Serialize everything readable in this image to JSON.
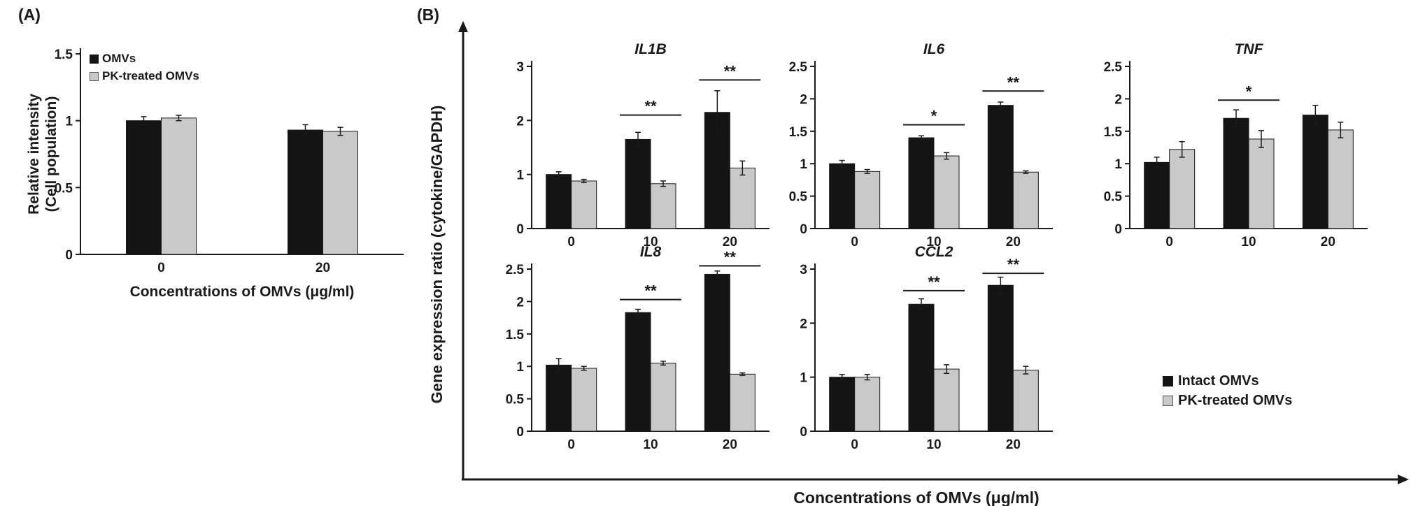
{
  "panels": {
    "a": {
      "label": "(A)",
      "legend": [
        {
          "label": "OMVs",
          "color": "black"
        },
        {
          "label": "PK-treated OMVs",
          "color": "gray"
        }
      ]
    },
    "b": {
      "label": "(B)",
      "ylabel": "Gene expression ratio (cytokine/GAPDH)",
      "xlabel": "Concentrations of OMVs (μg/ml)",
      "legend": [
        {
          "label": "Intact OMVs",
          "color": "black"
        },
        {
          "label": "PK-treated OMVs",
          "color": "gray"
        }
      ]
    }
  },
  "colors": {
    "series_black": "#141414",
    "series_gray": "#c9c9c9",
    "axis": "#1a1a1a",
    "background": "#ffffff"
  },
  "chart_data": [
    {
      "id": "A",
      "type": "bar",
      "title": "",
      "categories": [
        "0",
        "20"
      ],
      "series": [
        {
          "name": "OMVs",
          "color": "black",
          "values": [
            1.0,
            0.93
          ],
          "errors": [
            0.03,
            0.04
          ]
        },
        {
          "name": "PK-treated OMVs",
          "color": "gray",
          "values": [
            1.02,
            0.92
          ],
          "errors": [
            0.02,
            0.03
          ]
        }
      ],
      "ylim": [
        0,
        1.5
      ],
      "yticks": [
        "0",
        "0.5",
        "1",
        "1.5"
      ],
      "ylabel_lines": [
        "Relative intensity",
        "(Cell population)"
      ],
      "xlabel": "Concentrations of OMVs (μg/ml)",
      "significance": []
    },
    {
      "id": "IL1B",
      "type": "bar",
      "title": "IL1B",
      "categories": [
        "0",
        "10",
        "20"
      ],
      "series": [
        {
          "name": "Intact OMVs",
          "color": "black",
          "values": [
            1.0,
            1.65,
            2.15
          ],
          "errors": [
            0.05,
            0.13,
            0.4
          ]
        },
        {
          "name": "PK-treated OMVs",
          "color": "gray",
          "values": [
            0.88,
            0.83,
            1.12
          ],
          "errors": [
            0.03,
            0.05,
            0.13
          ]
        }
      ],
      "ylim": [
        0,
        3
      ],
      "yticks": [
        "0",
        "1",
        "2",
        "3"
      ],
      "significance": [
        {
          "category": "10",
          "label": "**",
          "line_y": 2.1
        },
        {
          "category": "20",
          "label": "**",
          "line_y": 2.75
        }
      ]
    },
    {
      "id": "IL6",
      "type": "bar",
      "title": "IL6",
      "categories": [
        "0",
        "10",
        "20"
      ],
      "series": [
        {
          "name": "Intact OMVs",
          "color": "black",
          "values": [
            1.0,
            1.4,
            1.9
          ],
          "errors": [
            0.05,
            0.03,
            0.05
          ]
        },
        {
          "name": "PK-treated OMVs",
          "color": "gray",
          "values": [
            0.88,
            1.12,
            0.87
          ],
          "errors": [
            0.03,
            0.05,
            0.02
          ]
        }
      ],
      "ylim": [
        0,
        2.5
      ],
      "yticks": [
        "0",
        "0.5",
        "1",
        "1.5",
        "2",
        "2.5"
      ],
      "significance": [
        {
          "category": "10",
          "label": "*",
          "line_y": 1.6
        },
        {
          "category": "20",
          "label": "**",
          "line_y": 2.12
        }
      ]
    },
    {
      "id": "TNF",
      "type": "bar",
      "title": "TNF",
      "categories": [
        "0",
        "10",
        "20"
      ],
      "series": [
        {
          "name": "Intact OMVs",
          "color": "black",
          "values": [
            1.02,
            1.7,
            1.75
          ],
          "errors": [
            0.08,
            0.13,
            0.15
          ]
        },
        {
          "name": "PK-treated OMVs",
          "color": "gray",
          "values": [
            1.22,
            1.38,
            1.52
          ],
          "errors": [
            0.12,
            0.13,
            0.12
          ]
        }
      ],
      "ylim": [
        0,
        2.5
      ],
      "yticks": [
        "0",
        "0.5",
        "1",
        "1.5",
        "2",
        "2.5"
      ],
      "significance": [
        {
          "category": "10",
          "label": "*",
          "line_y": 1.98
        }
      ]
    },
    {
      "id": "IL8",
      "type": "bar",
      "title": "IL8",
      "categories": [
        "0",
        "10",
        "20"
      ],
      "series": [
        {
          "name": "Intact OMVs",
          "color": "black",
          "values": [
            1.02,
            1.83,
            2.42
          ],
          "errors": [
            0.1,
            0.05,
            0.05
          ]
        },
        {
          "name": "PK-treated OMVs",
          "color": "gray",
          "values": [
            0.97,
            1.05,
            0.88
          ],
          "errors": [
            0.03,
            0.03,
            0.02
          ]
        }
      ],
      "ylim": [
        0,
        2.5
      ],
      "yticks": [
        "0",
        "0.5",
        "1",
        "1.5",
        "2",
        "2.5"
      ],
      "significance": [
        {
          "category": "10",
          "label": "**",
          "line_y": 2.03
        },
        {
          "category": "20",
          "label": "**",
          "line_y": 2.55
        }
      ]
    },
    {
      "id": "CCL2",
      "type": "bar",
      "title": "CCL2",
      "categories": [
        "0",
        "10",
        "20"
      ],
      "series": [
        {
          "name": "Intact OMVs",
          "color": "black",
          "values": [
            1.0,
            2.35,
            2.7
          ],
          "errors": [
            0.05,
            0.1,
            0.15
          ]
        },
        {
          "name": "PK-treated OMVs",
          "color": "gray",
          "values": [
            1.0,
            1.15,
            1.13
          ],
          "errors": [
            0.05,
            0.08,
            0.07
          ]
        }
      ],
      "ylim": [
        0,
        3
      ],
      "yticks": [
        "0",
        "1",
        "2",
        "3"
      ],
      "significance": [
        {
          "category": "10",
          "label": "**",
          "line_y": 2.6
        },
        {
          "category": "20",
          "label": "**",
          "line_y": 2.92
        }
      ]
    }
  ]
}
